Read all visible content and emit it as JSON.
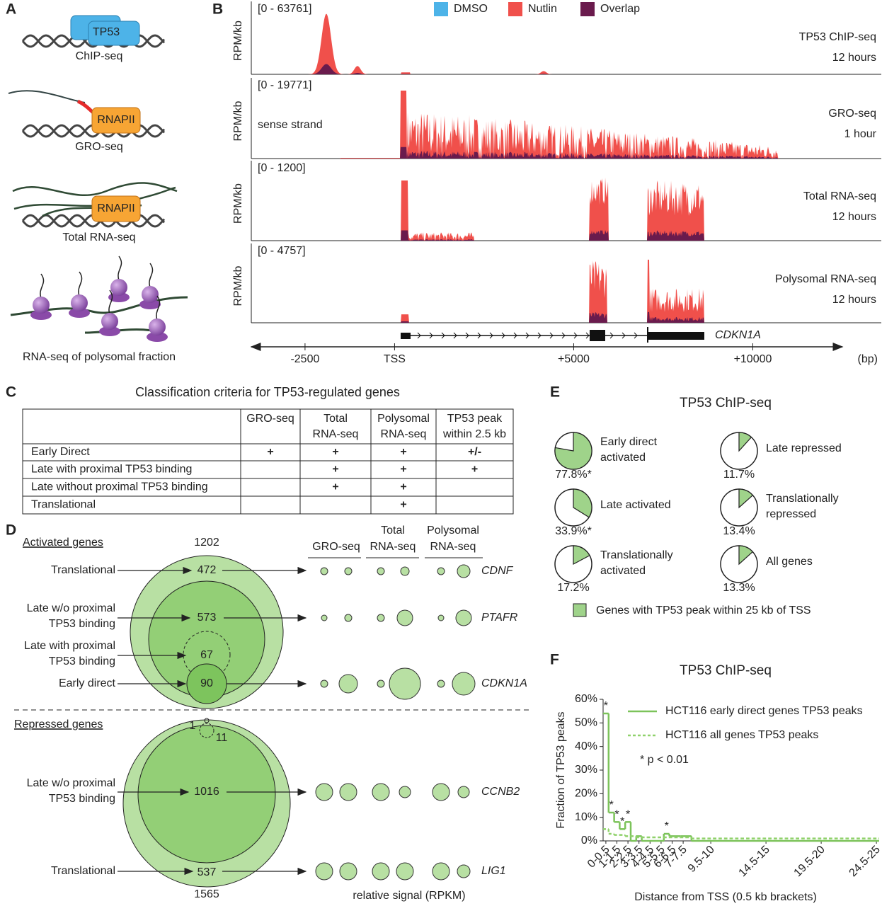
{
  "panels": {
    "A": {
      "letter": "A",
      "labels": [
        "ChIP-seq",
        "GRO-seq",
        "Total RNA-seq",
        "RNA-seq of polysomal fraction"
      ],
      "protein": "TP53",
      "polymerase": "RNAPII"
    },
    "B": {
      "letter": "B",
      "legend": [
        "DMSO",
        "Nutlin",
        "Overlap"
      ],
      "legend_colors": [
        "#4db3e8",
        "#f0504b",
        "#6a1b4d"
      ],
      "ylabel": "RPM/kb",
      "tracks": [
        {
          "range": "[0 - 63761]",
          "name": "TP53 ChIP-seq",
          "time": "12 hours"
        },
        {
          "range": "[0 - 19771]",
          "name": "GRO-seq",
          "time": "1 hour",
          "note": "sense strand"
        },
        {
          "range": "[0 - 1200]",
          "name": "Total RNA-seq",
          "time": "12 hours"
        },
        {
          "range": "[0 - 4757]",
          "name": "Polysomal RNA-seq",
          "time": "12 hours"
        }
      ],
      "gene": "CDKN1A",
      "xlim": [
        -4000,
        12500
      ],
      "xticks": [
        -2500,
        {
          "value": 0,
          "label": "TSS"
        },
        {
          "value": 5000,
          "label": "+5000"
        },
        {
          "value": 10000,
          "label": "+10000"
        }
      ],
      "xunit": "(bp)"
    },
    "C": {
      "letter": "C",
      "title": "Classification criteria for TP53-regulated genes",
      "header": [
        [
          "GRO-seq"
        ],
        [
          "Total",
          "RNA-seq"
        ],
        [
          "Polysomal",
          "RNA-seq"
        ],
        [
          "TP53 peak",
          "within 2.5 kb"
        ]
      ],
      "rows": [
        {
          "label": "Early Direct",
          "cells": {
            "0": "+",
            "1": "+",
            "2": "+",
            "3": "+/-"
          }
        },
        {
          "label": "Late with proximal TP53 binding",
          "cells": {
            "1": "+",
            "2": "+",
            "3": "+"
          }
        },
        {
          "label": "Late without proximal TP53 binding",
          "cells": {
            "1": "+",
            "2": "+"
          }
        },
        {
          "label": "Translational",
          "cells": {
            "2": "+"
          }
        }
      ]
    },
    "D": {
      "letter": "D",
      "activated_title": "Activated genes",
      "repressed_title": "Repressed genes",
      "activated_labels": [
        [
          "Translational"
        ],
        [
          "Late w/o proximal",
          "TP53 binding"
        ],
        [
          "Late with proximal",
          "TP53 binding"
        ],
        [
          "Early direct"
        ]
      ],
      "activated_counts": {
        "total": 1202,
        "translational": 472,
        "late_without": 573,
        "late_with": 67,
        "early": 90
      },
      "repressed_labels": [
        [
          "Late w/o proximal",
          "TP53 binding"
        ],
        [
          "Translational"
        ]
      ],
      "repressed_counts": {
        "total": 1565,
        "late_with": 1,
        "early": 11,
        "late_without": 1016,
        "translational": 537
      },
      "columns": [
        [
          "GRO-seq"
        ],
        [
          "Total",
          "RNA-seq"
        ],
        [
          "Polysomal",
          "RNA-seq"
        ]
      ],
      "genes": [
        "CDNF",
        "PTAFR",
        "CDKN1A",
        "CCNB2",
        "LIG1"
      ],
      "footer": "relative signal (RPKM)"
    },
    "E": {
      "letter": "E",
      "title": "TP53 ChIP-seq",
      "color": "#9fd38a",
      "pies": [
        {
          "label": [
            "Early direct",
            "activated"
          ],
          "value": 77.8,
          "value_label": "77.8%*"
        },
        {
          "label": [
            "Late activated"
          ],
          "value": 33.9,
          "value_label": "33.9%*"
        },
        {
          "label": [
            "Translationally",
            "activated"
          ],
          "value": 17.2,
          "value_label": "17.2%"
        },
        {
          "label": [
            "Late repressed"
          ],
          "value": 11.7,
          "value_label": "11.7%"
        },
        {
          "label": [
            "Translationally",
            "repressed"
          ],
          "value": 13.4,
          "value_label": "13.4%"
        },
        {
          "label": [
            "All genes"
          ],
          "value": 13.3,
          "value_label": "13.3%"
        }
      ],
      "legend": "Genes with TP53 peak within 25 kb of TSS"
    }
  },
  "chart_data": {
    "type": "step",
    "letter": "F",
    "title": "TP53 ChIP-seq",
    "xlabel": "Distance from TSS (0.5 kb brackets)",
    "ylabel": "Fraction of TP53 peaks",
    "categories": [
      "0-0.5",
      null,
      "1-1.5",
      null,
      "2-2.5",
      null,
      "3-3.5",
      null,
      "4-4.5",
      null,
      "5-5.5",
      null,
      "6-6.5",
      null,
      "7-7.5",
      null,
      null,
      null,
      null,
      "9.5-10",
      null,
      null,
      null,
      null,
      null,
      null,
      null,
      null,
      null,
      "14.5-15",
      null,
      null,
      null,
      null,
      null,
      null,
      null,
      null,
      null,
      "19.5-20",
      null,
      null,
      null,
      null,
      null,
      null,
      null,
      null,
      null,
      "24.5-25"
    ],
    "series": [
      {
        "name": "HCT116 early direct genes TP53 peaks",
        "color": "#7cc35a",
        "dashed": false,
        "values": [
          54,
          12,
          8,
          5,
          8,
          0,
          2,
          0,
          0,
          0,
          0,
          3,
          2,
          2,
          2,
          2,
          0,
          0,
          0,
          0,
          0,
          0,
          0,
          0,
          0,
          0,
          0,
          0,
          0,
          0,
          0,
          0,
          0,
          0,
          0,
          0,
          0,
          0,
          0,
          0,
          0,
          0,
          0,
          0,
          0,
          0,
          0,
          0,
          0,
          0
        ]
      },
      {
        "name": "HCT116 all genes TP53 peaks",
        "color": "#8fd16a",
        "dashed": true,
        "values": [
          5,
          3,
          2.5,
          2.5,
          2,
          2,
          1.5,
          1.5,
          1.5,
          1.5,
          1.5,
          1.5,
          1.5,
          1.5,
          1.5,
          1.5,
          1,
          1,
          1,
          1,
          1,
          1,
          1,
          1,
          1,
          1,
          1,
          1,
          1,
          1,
          1,
          1,
          1,
          1,
          1,
          1,
          1,
          1,
          1,
          1,
          1,
          1,
          1,
          1,
          1,
          1,
          1,
          1,
          1,
          1
        ]
      }
    ],
    "ylim": [
      0,
      60
    ],
    "yticks": [
      {
        "value": 0,
        "label": "0%"
      },
      {
        "value": 10,
        "label": "10%"
      },
      {
        "value": 20,
        "label": "20%"
      },
      {
        "value": 30,
        "label": "30%"
      },
      {
        "value": 40,
        "label": "40%"
      },
      {
        "value": 50,
        "label": "50%"
      },
      {
        "value": 60,
        "label": "60%"
      }
    ],
    "annotations": [
      {
        "text": "*",
        "index": 0,
        "series": 0
      },
      {
        "text": "*",
        "index": 1,
        "series": 0
      },
      {
        "text": "*",
        "index": 2,
        "series": 0
      },
      {
        "text": "*",
        "index": 3,
        "series": 0
      },
      {
        "text": "*",
        "index": 4,
        "series": 0
      },
      {
        "text": "*",
        "index": 11,
        "series": 0
      }
    ],
    "note": "* p < 0.01"
  }
}
